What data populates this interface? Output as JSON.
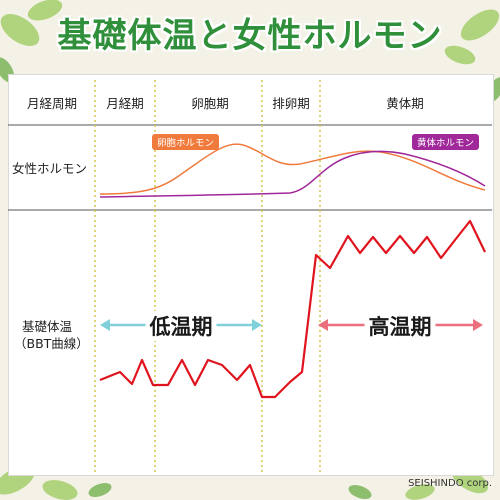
{
  "title": "基礎体温と女性ホルモン",
  "header": {
    "cycle_label": "月経周期",
    "phases": [
      "月経期",
      "卵胞期",
      "排卵期",
      "黄体期"
    ]
  },
  "rows": {
    "hormone_label": "女性ホルモン",
    "bbt_label_line1": "基礎体温",
    "bbt_label_line2": "（BBT曲線）"
  },
  "hormones": {
    "estrogen_label": "卵胞ホルモン",
    "progesterone_label": "黄体ホルモン"
  },
  "temperature_phases": {
    "low": "低温期",
    "high": "高温期"
  },
  "credit": "SEISHINDO corp.",
  "colors": {
    "title": "#2f8f3a",
    "estrogen": "#f07a3c",
    "progesterone": "#a0289a",
    "bbt_line": "#e0141e",
    "low_arrow": "#7fd0d8",
    "high_arrow": "#ec6f7e",
    "divider": "#d6c44a"
  }
}
